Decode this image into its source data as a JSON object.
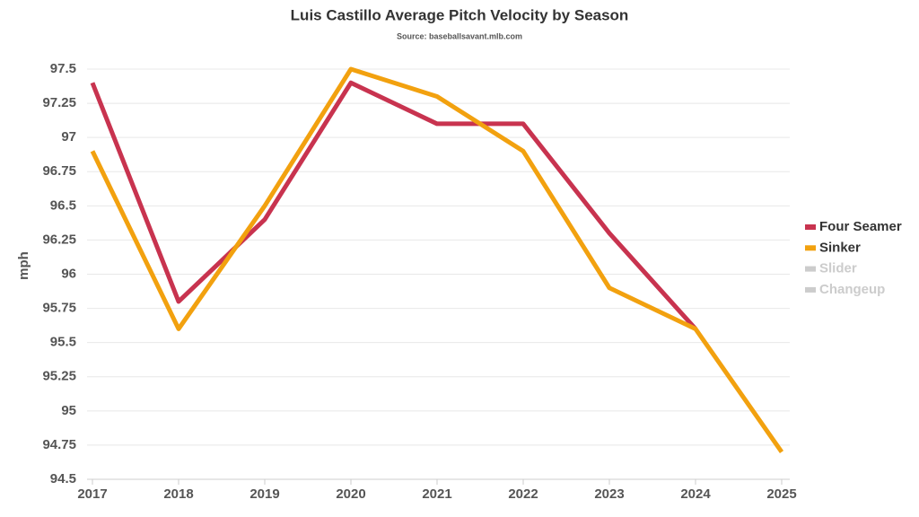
{
  "chart_data": {
    "type": "line",
    "title": "Luis Castillo Average Pitch Velocity by Season",
    "subtitle": "Source: baseballsavant.mlb.com",
    "ylabel": "mph",
    "categories": [
      "2017",
      "2018",
      "2019",
      "2020",
      "2021",
      "2022",
      "2023",
      "2024",
      "2025"
    ],
    "series": [
      {
        "name": "Four Seamer",
        "color": "#c8334f",
        "visible": true,
        "values": [
          97.4,
          95.8,
          96.4,
          97.4,
          97.1,
          97.1,
          96.3,
          95.6,
          null
        ]
      },
      {
        "name": "Sinker",
        "color": "#f2a10f",
        "visible": true,
        "values": [
          96.9,
          95.6,
          96.5,
          97.5,
          97.3,
          96.9,
          95.9,
          95.6,
          94.7
        ]
      },
      {
        "name": "Slider",
        "color": "#cccccc",
        "visible": false,
        "values": [
          null,
          null,
          null,
          null,
          null,
          null,
          null,
          null,
          null
        ]
      },
      {
        "name": "Changeup",
        "color": "#cccccc",
        "visible": false,
        "values": [
          null,
          null,
          null,
          null,
          null,
          null,
          null,
          null,
          null
        ]
      }
    ],
    "ylim": [
      94.5,
      97.5
    ],
    "yticks": [
      94.5,
      94.75,
      95,
      95.25,
      95.5,
      95.75,
      96,
      96.25,
      96.5,
      96.75,
      97,
      97.25,
      97.5
    ],
    "grid": true,
    "legend": "right"
  }
}
